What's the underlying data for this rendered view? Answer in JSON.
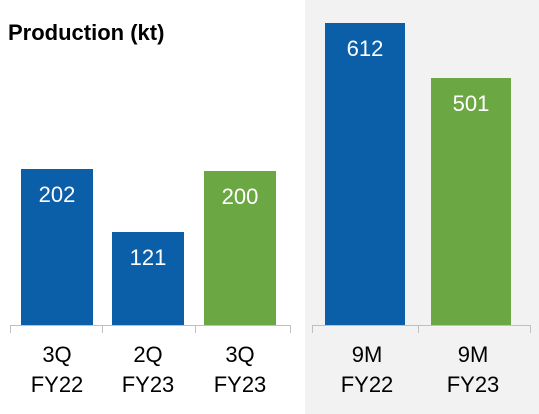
{
  "chart_data": [
    {
      "type": "bar",
      "title": "Production (kt)",
      "categories": [
        "3Q FY22",
        "2Q FY23",
        "3Q FY23"
      ],
      "values": [
        202,
        121,
        200
      ],
      "colors": [
        "#0b5ea8",
        "#0b5ea8",
        "#6ba843"
      ]
    },
    {
      "type": "bar",
      "categories": [
        "9M FY22",
        "9M FY23"
      ],
      "values": [
        612,
        501
      ],
      "colors": [
        "#0b5ea8",
        "#6ba843"
      ]
    }
  ]
}
